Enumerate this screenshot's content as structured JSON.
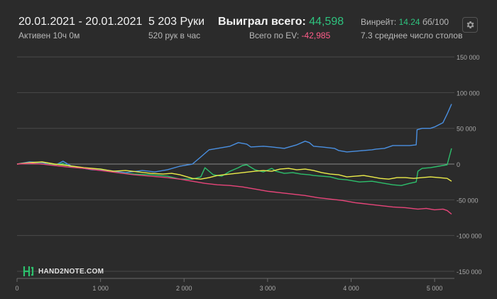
{
  "header": {
    "date_range": "20.01.2021 - 20.01.2021",
    "status": "Активен 10ч 0м",
    "hands": "5 203 Руки",
    "hands_per_hour": "520 рук в час",
    "won_label": "Выиграл всего:",
    "won_value": "44,598",
    "ev_label": "Всего по EV:",
    "ev_value": "-42,985",
    "winrate_label": "Винрейт:",
    "winrate_value": "14.24",
    "winrate_unit": "бб/100",
    "tables": "7.3 среднее число столов",
    "settings_icon": "gear-icon"
  },
  "logo": {
    "text": "HAND2NOTE.COM"
  },
  "colors": {
    "background": "#2b2b2b",
    "grid": "#4a4a4a",
    "zero_line": "#8a8a8a",
    "blue": "#4a90e2",
    "green": "#2dbf6c",
    "yellow": "#ecec4a",
    "pink": "#e8457a",
    "accent_green": "#2ec27e",
    "accent_pink": "#ff5c8a"
  },
  "chart_data": {
    "type": "line",
    "xlim": [
      0,
      5203
    ],
    "ylim": [
      -160000,
      170000
    ],
    "x_ticks": [
      0,
      1000,
      2000,
      3000,
      4000,
      5000
    ],
    "x_tick_labels": [
      "0",
      "1 000",
      "2 000",
      "3 000",
      "4 000",
      "5 000"
    ],
    "y_ticks": [
      150000,
      100000,
      50000,
      0,
      -50000,
      -100000,
      -150000
    ],
    "y_tick_labels": [
      "150 000",
      "100 000",
      "50 000",
      "0",
      "-50 000",
      "-100 000",
      "-150 000"
    ],
    "grid": true,
    "series": [
      {
        "color": "blue",
        "points": [
          [
            0,
            0
          ],
          [
            150,
            3000
          ],
          [
            300,
            2000
          ],
          [
            450,
            -2000
          ],
          [
            550,
            4000
          ],
          [
            650,
            -3000
          ],
          [
            750,
            -5000
          ],
          [
            900,
            -8000
          ],
          [
            1100,
            -9000
          ],
          [
            1300,
            -12000
          ],
          [
            1500,
            -9000
          ],
          [
            1650,
            -11000
          ],
          [
            1800,
            -8000
          ],
          [
            1950,
            -3000
          ],
          [
            2100,
            0
          ],
          [
            2200,
            10000
          ],
          [
            2300,
            20000
          ],
          [
            2400,
            22000
          ],
          [
            2550,
            25000
          ],
          [
            2650,
            30000
          ],
          [
            2750,
            28000
          ],
          [
            2800,
            24000
          ],
          [
            2950,
            25000
          ],
          [
            3050,
            24000
          ],
          [
            3200,
            22000
          ],
          [
            3350,
            27000
          ],
          [
            3450,
            32000
          ],
          [
            3500,
            30000
          ],
          [
            3550,
            25000
          ],
          [
            3650,
            24000
          ],
          [
            3800,
            22000
          ],
          [
            3850,
            19000
          ],
          [
            3950,
            17000
          ],
          [
            4050,
            18000
          ],
          [
            4150,
            19000
          ],
          [
            4250,
            20000
          ],
          [
            4300,
            21000
          ],
          [
            4400,
            22000
          ],
          [
            4500,
            26000
          ],
          [
            4600,
            26000
          ],
          [
            4700,
            26000
          ],
          [
            4780,
            27000
          ],
          [
            4790,
            48000
          ],
          [
            4850,
            50000
          ],
          [
            4950,
            50000
          ],
          [
            5000,
            52000
          ],
          [
            5050,
            55000
          ],
          [
            5100,
            58000
          ],
          [
            5150,
            70000
          ],
          [
            5203,
            84000
          ]
        ]
      },
      {
        "color": "green",
        "points": [
          [
            0,
            0
          ],
          [
            150,
            2000
          ],
          [
            300,
            0
          ],
          [
            450,
            -1000
          ],
          [
            550,
            1000
          ],
          [
            650,
            -4000
          ],
          [
            800,
            -6000
          ],
          [
            1000,
            -7000
          ],
          [
            1200,
            -12000
          ],
          [
            1400,
            -14000
          ],
          [
            1600,
            -15000
          ],
          [
            1800,
            -17000
          ],
          [
            1950,
            -21000
          ],
          [
            2100,
            -21000
          ],
          [
            2200,
            -18000
          ],
          [
            2250,
            -5000
          ],
          [
            2300,
            -10000
          ],
          [
            2350,
            -15000
          ],
          [
            2450,
            -17000
          ],
          [
            2550,
            -10000
          ],
          [
            2650,
            -5000
          ],
          [
            2700,
            -2000
          ],
          [
            2750,
            -1000
          ],
          [
            2850,
            -8000
          ],
          [
            2950,
            -11000
          ],
          [
            3050,
            -6000
          ],
          [
            3100,
            -10000
          ],
          [
            3200,
            -13000
          ],
          [
            3300,
            -12000
          ],
          [
            3400,
            -14000
          ],
          [
            3500,
            -15000
          ],
          [
            3550,
            -16000
          ],
          [
            3650,
            -17000
          ],
          [
            3750,
            -18000
          ],
          [
            3850,
            -21000
          ],
          [
            3950,
            -22000
          ],
          [
            4100,
            -25000
          ],
          [
            4250,
            -24000
          ],
          [
            4400,
            -27000
          ],
          [
            4500,
            -29000
          ],
          [
            4600,
            -30000
          ],
          [
            4700,
            -27000
          ],
          [
            4780,
            -25000
          ],
          [
            4800,
            -10000
          ],
          [
            4850,
            -6000
          ],
          [
            4950,
            -5000
          ],
          [
            5050,
            -3000
          ],
          [
            5100,
            -2000
          ],
          [
            5150,
            -1000
          ],
          [
            5203,
            22000
          ]
        ]
      },
      {
        "color": "yellow",
        "points": [
          [
            0,
            0
          ],
          [
            150,
            2000
          ],
          [
            300,
            3000
          ],
          [
            450,
            0
          ],
          [
            600,
            -2000
          ],
          [
            800,
            -5000
          ],
          [
            1000,
            -7000
          ],
          [
            1150,
            -10000
          ],
          [
            1300,
            -9000
          ],
          [
            1450,
            -11000
          ],
          [
            1600,
            -13000
          ],
          [
            1750,
            -14000
          ],
          [
            1850,
            -13000
          ],
          [
            1950,
            -15000
          ],
          [
            2100,
            -20000
          ],
          [
            2200,
            -21000
          ],
          [
            2300,
            -19000
          ],
          [
            2400,
            -16000
          ],
          [
            2550,
            -14000
          ],
          [
            2700,
            -12000
          ],
          [
            2850,
            -10000
          ],
          [
            2950,
            -9000
          ],
          [
            3050,
            -10000
          ],
          [
            3150,
            -7000
          ],
          [
            3250,
            -6000
          ],
          [
            3350,
            -8000
          ],
          [
            3450,
            -7000
          ],
          [
            3550,
            -9000
          ],
          [
            3650,
            -12000
          ],
          [
            3750,
            -14000
          ],
          [
            3850,
            -15000
          ],
          [
            3950,
            -18000
          ],
          [
            4050,
            -17000
          ],
          [
            4150,
            -16000
          ],
          [
            4250,
            -18000
          ],
          [
            4350,
            -20000
          ],
          [
            4450,
            -21000
          ],
          [
            4550,
            -19000
          ],
          [
            4650,
            -19000
          ],
          [
            4750,
            -20000
          ],
          [
            4850,
            -19000
          ],
          [
            4950,
            -18000
          ],
          [
            5050,
            -19000
          ],
          [
            5150,
            -20000
          ],
          [
            5203,
            -24000
          ]
        ]
      },
      {
        "color": "pink",
        "points": [
          [
            0,
            0
          ],
          [
            150,
            1000
          ],
          [
            300,
            0
          ],
          [
            450,
            -2000
          ],
          [
            600,
            -4000
          ],
          [
            800,
            -6000
          ],
          [
            1000,
            -9000
          ],
          [
            1200,
            -12000
          ],
          [
            1400,
            -15000
          ],
          [
            1600,
            -17000
          ],
          [
            1800,
            -19000
          ],
          [
            1950,
            -21000
          ],
          [
            2100,
            -24000
          ],
          [
            2250,
            -27000
          ],
          [
            2400,
            -29000
          ],
          [
            2550,
            -30000
          ],
          [
            2700,
            -32000
          ],
          [
            2850,
            -35000
          ],
          [
            3000,
            -38000
          ],
          [
            3150,
            -40000
          ],
          [
            3300,
            -42000
          ],
          [
            3450,
            -44000
          ],
          [
            3600,
            -47000
          ],
          [
            3750,
            -49000
          ],
          [
            3900,
            -51000
          ],
          [
            4050,
            -54000
          ],
          [
            4200,
            -56000
          ],
          [
            4350,
            -58000
          ],
          [
            4500,
            -60000
          ],
          [
            4650,
            -61000
          ],
          [
            4800,
            -63000
          ],
          [
            4900,
            -62000
          ],
          [
            5000,
            -64000
          ],
          [
            5100,
            -63000
          ],
          [
            5150,
            -65000
          ],
          [
            5203,
            -70000
          ]
        ]
      }
    ]
  }
}
